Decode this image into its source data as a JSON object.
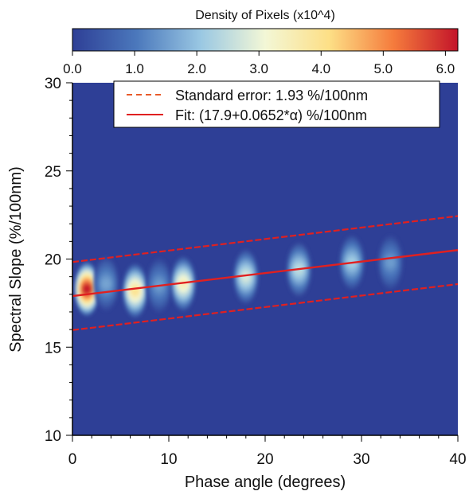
{
  "chart_data": {
    "type": "heatmap",
    "xlabel": "Phase angle (degrees)",
    "ylabel": "Spectral Slope (%/100nm)",
    "xlim": [
      0,
      40
    ],
    "ylim": [
      10,
      30
    ],
    "x_ticks": [
      0,
      10,
      20,
      30,
      40
    ],
    "y_ticks": [
      10,
      15,
      20,
      25,
      30
    ],
    "background_color": "#2e3f96",
    "colorbar": {
      "title": "Density of Pixels (x10^4)",
      "range": [
        0,
        6.2
      ],
      "ticks": [
        "0.0",
        "1.0",
        "2.0",
        "3.0",
        "4.0",
        "5.0",
        "6.0"
      ],
      "tick_values": [
        0,
        1,
        2,
        3,
        4,
        5,
        6
      ],
      "colors": [
        "#2e3f96",
        "#4b78bc",
        "#9ac8e3",
        "#f3f7d6",
        "#fddf86",
        "#f57b3c",
        "#c3142a"
      ]
    },
    "density_clusters": [
      {
        "x": 1.5,
        "y": 18.3,
        "peak": 6.2
      },
      {
        "x": 3.5,
        "y": 18.6,
        "peak": 1.6
      },
      {
        "x": 6.5,
        "y": 18.2,
        "peak": 4.0
      },
      {
        "x": 9.0,
        "y": 18.5,
        "peak": 1.5
      },
      {
        "x": 11.5,
        "y": 18.6,
        "peak": 3.5
      },
      {
        "x": 18.0,
        "y": 19.0,
        "peak": 2.8
      },
      {
        "x": 23.5,
        "y": 19.4,
        "peak": 2.5
      },
      {
        "x": 29.0,
        "y": 19.8,
        "peak": 2.2
      },
      {
        "x": 33.0,
        "y": 19.8,
        "peak": 1.5
      }
    ],
    "series": [
      {
        "name": "Fit: (17.9+0.0652*α) %/100nm",
        "style": "solid",
        "color": "#e02020",
        "intercept": 17.9,
        "slope": 0.0652
      },
      {
        "name": "Standard error: 1.93 %/100nm",
        "style": "dashed",
        "color": "#e02020",
        "offset": 1.93
      }
    ]
  }
}
